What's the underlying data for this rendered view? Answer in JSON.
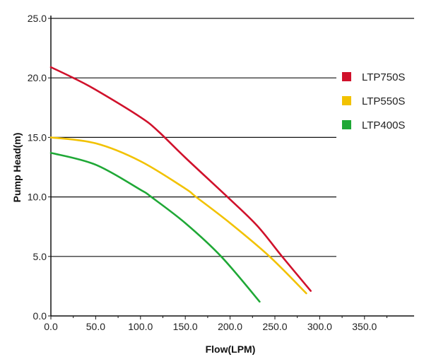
{
  "chart_data": {
    "type": "line",
    "title": "",
    "xlabel": "Flow(LPM)",
    "ylabel": "Pump Head(m)",
    "xlim": [
      0,
      400
    ],
    "ylim": [
      0,
      25
    ],
    "x_ticks": [
      "0.0",
      "50.0",
      "100.0",
      "150.0",
      "200.0",
      "250.0",
      "300.0",
      "350.0"
    ],
    "x_tick_values": [
      0,
      50,
      100,
      150,
      200,
      250,
      300,
      350
    ],
    "y_ticks": [
      "0.0",
      "5.0",
      "10.0",
      "15.0",
      "20.0",
      "25.0"
    ],
    "y_tick_values": [
      0,
      5,
      10,
      15,
      20,
      25
    ],
    "grid": "horizontal",
    "legend_position": "right",
    "series": [
      {
        "name": "LTP750S",
        "color": "#d0112b",
        "x": [
          0,
          25,
          50,
          100,
          120,
          150,
          197,
          230,
          258,
          290
        ],
        "y": [
          20.9,
          20.0,
          19.0,
          16.7,
          15.5,
          13.3,
          10.0,
          7.6,
          5.0,
          2.1
        ]
      },
      {
        "name": "LTP550S",
        "color": "#f2c200",
        "x": [
          0,
          50,
          100,
          150,
          162,
          200,
          244,
          285
        ],
        "y": [
          15.0,
          14.5,
          13.0,
          10.7,
          10.0,
          7.8,
          5.0,
          1.9
        ]
      },
      {
        "name": "LTP400S",
        "color": "#1fa836",
        "x": [
          0,
          50,
          100,
          112,
          150,
          190,
          233
        ],
        "y": [
          13.7,
          12.7,
          10.6,
          10.0,
          7.8,
          5.0,
          1.2
        ]
      }
    ]
  }
}
